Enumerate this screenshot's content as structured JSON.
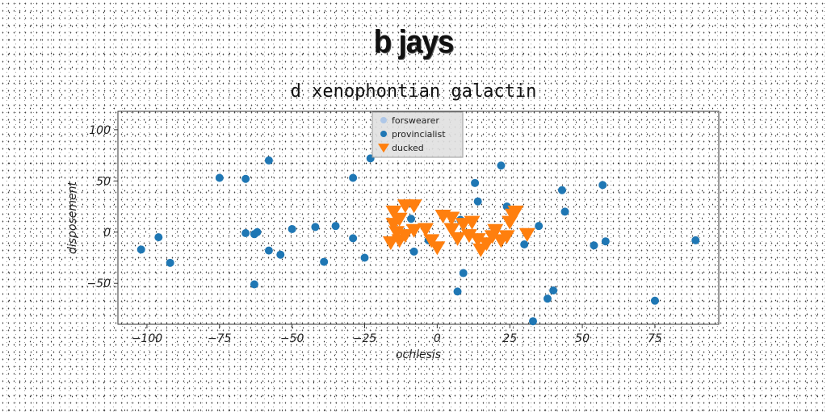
{
  "page": {
    "title": "b jays"
  },
  "chart_data": {
    "type": "scatter",
    "title": "d xenophontian galactin",
    "xlabel": "ochlesis",
    "ylabel": "disposement",
    "xlim": [
      -110,
      97
    ],
    "ylim": [
      -90,
      118
    ],
    "xticks": [
      -100,
      -75,
      -50,
      -25,
      0,
      25,
      50,
      75
    ],
    "yticks": [
      -50,
      0,
      50,
      100
    ],
    "xtick_labels": [
      "−100",
      "−75",
      "−50",
      "−25",
      "0",
      "25",
      "50",
      "75"
    ],
    "ytick_labels": [
      "−50",
      "0",
      "50",
      "100"
    ],
    "grid": false,
    "legend_position": "top-center",
    "series": [
      {
        "name": "forswearer",
        "marker": "circle",
        "color": "#aec7e8",
        "points": []
      },
      {
        "name": "provincialist",
        "marker": "circle",
        "color": "#1f77b4",
        "points": [
          [
            -102,
            -17
          ],
          [
            -96,
            -5
          ],
          [
            -92,
            -30
          ],
          [
            -75,
            53
          ],
          [
            -66,
            52
          ],
          [
            -66,
            -1
          ],
          [
            -63,
            -2
          ],
          [
            -62,
            0
          ],
          [
            -63,
            -51
          ],
          [
            -58,
            70
          ],
          [
            -58,
            -18
          ],
          [
            -54,
            -22
          ],
          [
            -50,
            3
          ],
          [
            -42,
            5
          ],
          [
            -39,
            -29
          ],
          [
            -35,
            6
          ],
          [
            -29,
            -6
          ],
          [
            -29,
            53
          ],
          [
            -25,
            -25
          ],
          [
            -23,
            72
          ],
          [
            -9,
            13
          ],
          [
            -8,
            -19
          ],
          [
            -3,
            -8
          ],
          [
            8,
            12
          ],
          [
            7,
            -58
          ],
          [
            9,
            -40
          ],
          [
            13,
            48
          ],
          [
            14,
            30
          ],
          [
            22,
            65
          ],
          [
            24,
            25
          ],
          [
            30,
            -12
          ],
          [
            33,
            -87
          ],
          [
            35,
            6
          ],
          [
            38,
            -65
          ],
          [
            40,
            -57
          ],
          [
            43,
            41
          ],
          [
            44,
            20
          ],
          [
            54,
            -13
          ],
          [
            57,
            46
          ],
          [
            58,
            -9
          ],
          [
            75,
            -67
          ],
          [
            89,
            -8
          ]
        ]
      },
      {
        "name": "ducked",
        "marker": "triangle-down",
        "color": "#ff7f0e",
        "points": [
          [
            -15,
            20
          ],
          [
            -13,
            13
          ],
          [
            -11,
            26
          ],
          [
            -8,
            26
          ],
          [
            -15,
            8
          ],
          [
            -14,
            0
          ],
          [
            -13,
            -8
          ],
          [
            -16,
            -10
          ],
          [
            -11,
            -3
          ],
          [
            -8,
            2
          ],
          [
            -4,
            3
          ],
          [
            -2,
            -8
          ],
          [
            0,
            -15
          ],
          [
            2,
            16
          ],
          [
            5,
            14
          ],
          [
            5,
            3
          ],
          [
            7,
            -6
          ],
          [
            9,
            8
          ],
          [
            11,
            -3
          ],
          [
            12,
            10
          ],
          [
            14,
            -7
          ],
          [
            15,
            -17
          ],
          [
            17,
            -11
          ],
          [
            19,
            -4
          ],
          [
            20,
            2
          ],
          [
            22,
            -8
          ],
          [
            24,
            -4
          ],
          [
            25,
            10
          ],
          [
            26,
            17
          ],
          [
            27,
            20
          ],
          [
            31,
            -2
          ]
        ]
      }
    ]
  }
}
